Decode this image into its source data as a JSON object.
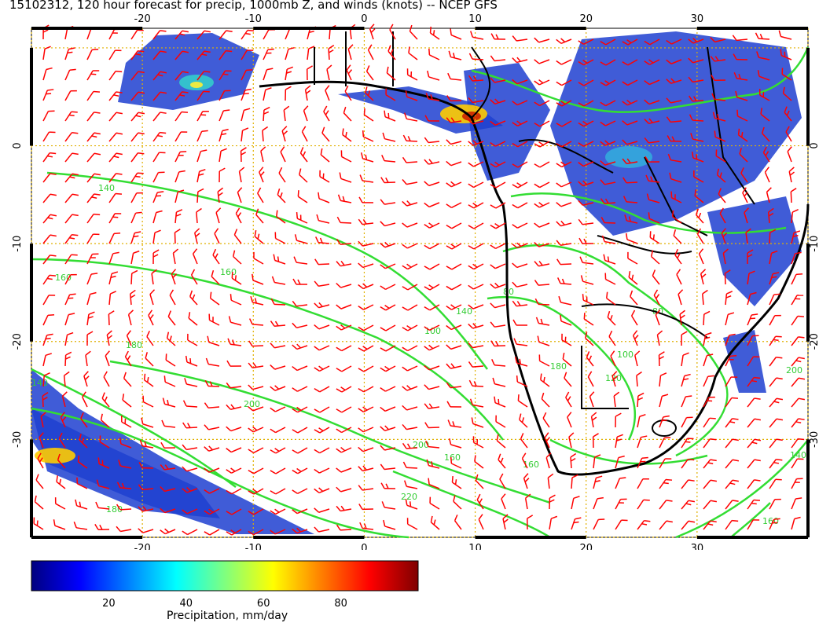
{
  "title": "15102312, 120 hour forecast for precip, 1000mb Z, and winds (knots) -- NCEP GFS",
  "map": {
    "lon_ticks": [
      "-20",
      "-10",
      "0",
      "10",
      "20",
      "30"
    ],
    "lat_ticks": [
      "0",
      "-10",
      "-20",
      "-30"
    ],
    "lon_range": [
      -30,
      40
    ],
    "lat_range": [
      -40,
      12
    ],
    "contour_labels": [
      "140",
      "160",
      "160",
      "180",
      "200",
      "140",
      "200",
      "220",
      "180",
      "160",
      "140",
      "80",
      "100",
      "160",
      "180",
      "200",
      "120",
      "80",
      "100",
      "140",
      "160"
    ]
  },
  "colorbar": {
    "label": "Precipitation, mm/day",
    "ticks": [
      "20",
      "40",
      "60",
      "80"
    ],
    "range": [
      0,
      100
    ],
    "colors": [
      "#00007f",
      "#0000ff",
      "#007fff",
      "#00ffff",
      "#7fff7f",
      "#ffff00",
      "#ff7f00",
      "#ff0000",
      "#7f0000"
    ]
  },
  "colors": {
    "barbs": "#ff0000",
    "contours": "#33dd33",
    "coast": "#000000",
    "grid": "#e0b000"
  }
}
